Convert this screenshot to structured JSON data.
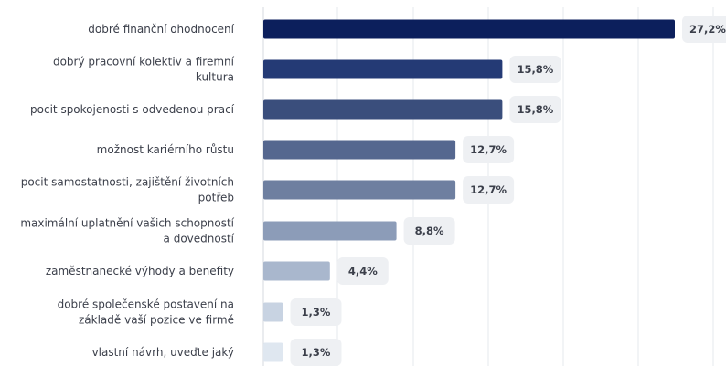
{
  "chart_data": {
    "type": "bar",
    "orientation": "horizontal",
    "categories": [
      [
        "dobré finanční ohodnocení"
      ],
      [
        "dobrý pracovní kolektiv a firemní",
        "kultura"
      ],
      [
        "pocit spokojenosti s odvedenou prací"
      ],
      [
        "možnost kariérního růstu"
      ],
      [
        "pocit samostatnosti, zajištění životních",
        "potřeb"
      ],
      [
        "maximální uplatnění vašich schopností",
        "a dovedností"
      ],
      [
        "zaměstnanecké výhody a benefity"
      ],
      [
        "dobré společenské postavení na",
        "základě vaší pozice ve firmě"
      ],
      [
        "vlastní návrh, uveďte jaký"
      ]
    ],
    "values": [
      27.2,
      15.8,
      15.8,
      12.7,
      12.7,
      8.8,
      4.4,
      1.3,
      1.3
    ],
    "value_labels": [
      "27,2%",
      "15,8%",
      "15,8%",
      "12,7%",
      "12,7%",
      "8,8%",
      "4,4%",
      "1,3%",
      "1,3%"
    ],
    "xlim": [
      0,
      30
    ],
    "grid": true,
    "bar_colors": [
      "#0c1f5c",
      "#243a75",
      "#3a4e7c",
      "#55678f",
      "#6e7fa0",
      "#8c9cb8",
      "#a9b7cd",
      "#c8d3e2",
      "#dfe7f0"
    ],
    "title": "",
    "xlabel": "",
    "ylabel": ""
  }
}
